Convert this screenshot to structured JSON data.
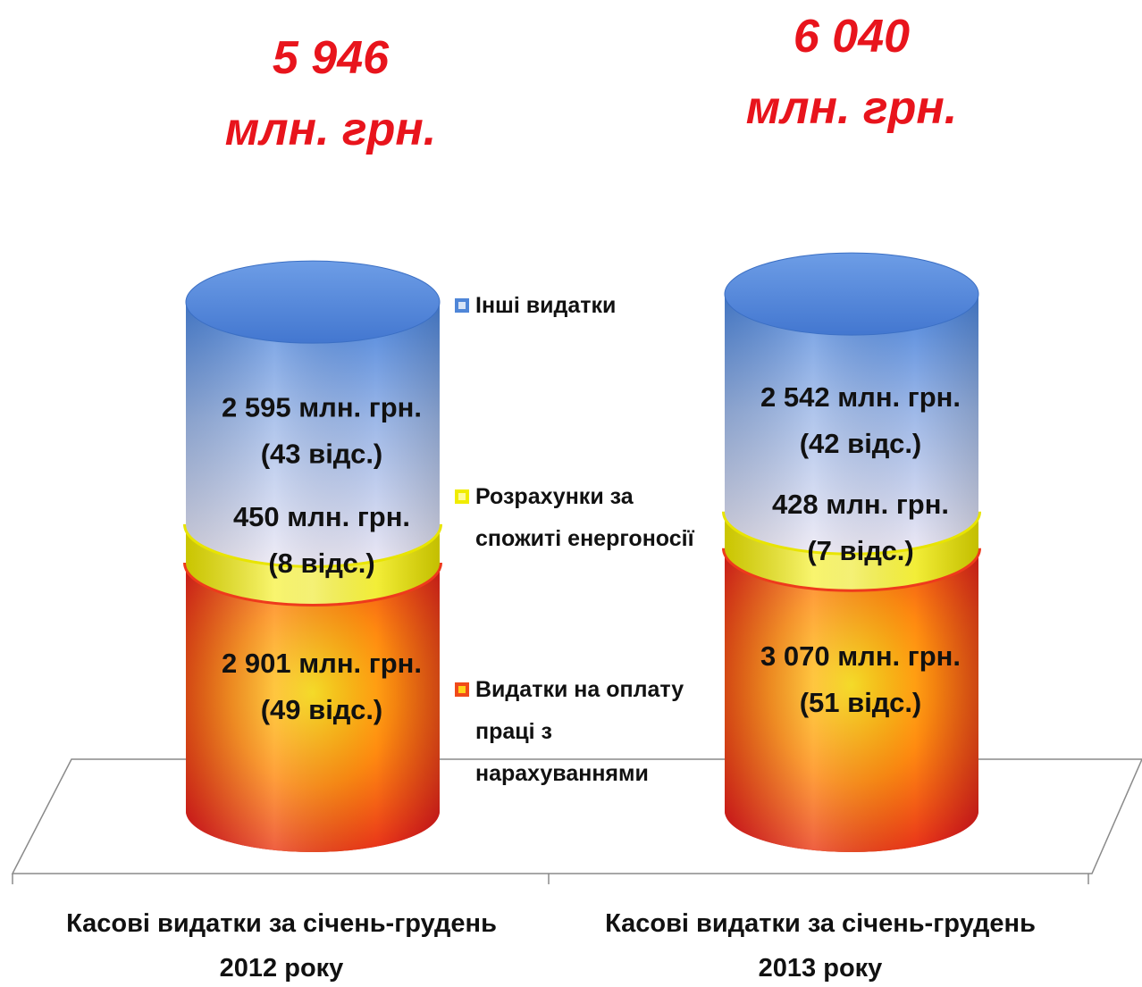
{
  "chart_data": {
    "type": "bar",
    "stacked": true,
    "unit": "млн. грн.",
    "categories": [
      "Касові видатки за січень-грудень 2012 року",
      "Касові видатки за січень-грудень 2013 року"
    ],
    "category_lines": [
      [
        "Касові видатки за січень-грудень",
        "2012 року"
      ],
      [
        "Касові видатки за січень-грудень",
        "2013 року"
      ]
    ],
    "totals": [
      5946,
      6040
    ],
    "total_labels": [
      [
        "5 946",
        "млн. грн."
      ],
      [
        "6 040",
        "млн. грн."
      ]
    ],
    "series": [
      {
        "name": "Видатки на оплату праці з нарахуваннями",
        "legend_lines": [
          "Видатки на оплату",
          "праці з",
          "нарахуваннями"
        ],
        "values": [
          2901,
          3070
        ],
        "percent": [
          49,
          51
        ],
        "labels": [
          [
            "2 901 млн. грн.",
            "(49 відс.)"
          ],
          [
            "3 070 млн. грн.",
            "(51 відс.)"
          ]
        ],
        "color": "#e8341c",
        "color_light": "#ffd21a"
      },
      {
        "name": "Розрахунки за спожиті енергоносії",
        "legend_lines": [
          "Розрахунки за",
          "спожиті енергоносії"
        ],
        "values": [
          450,
          428
        ],
        "percent": [
          8,
          7
        ],
        "labels": [
          [
            "450 млн. грн.",
            "(8 відс.)"
          ],
          [
            "428 млн. грн.",
            "(7 відс.)"
          ]
        ],
        "color": "#f2ef00",
        "color_light": "#fffb9a"
      },
      {
        "name": "Інші видатки",
        "legend_lines": [
          "Інші видатки"
        ],
        "values": [
          2595,
          2542
        ],
        "percent": [
          43,
          42
        ],
        "labels": [
          [
            "2 595 млн. грн.",
            "(43 відс.)"
          ],
          [
            "2 542 млн. грн.",
            "(42 відс.)"
          ]
        ],
        "color": "#4f86d8",
        "color_light": "#e6e3f2"
      }
    ]
  }
}
